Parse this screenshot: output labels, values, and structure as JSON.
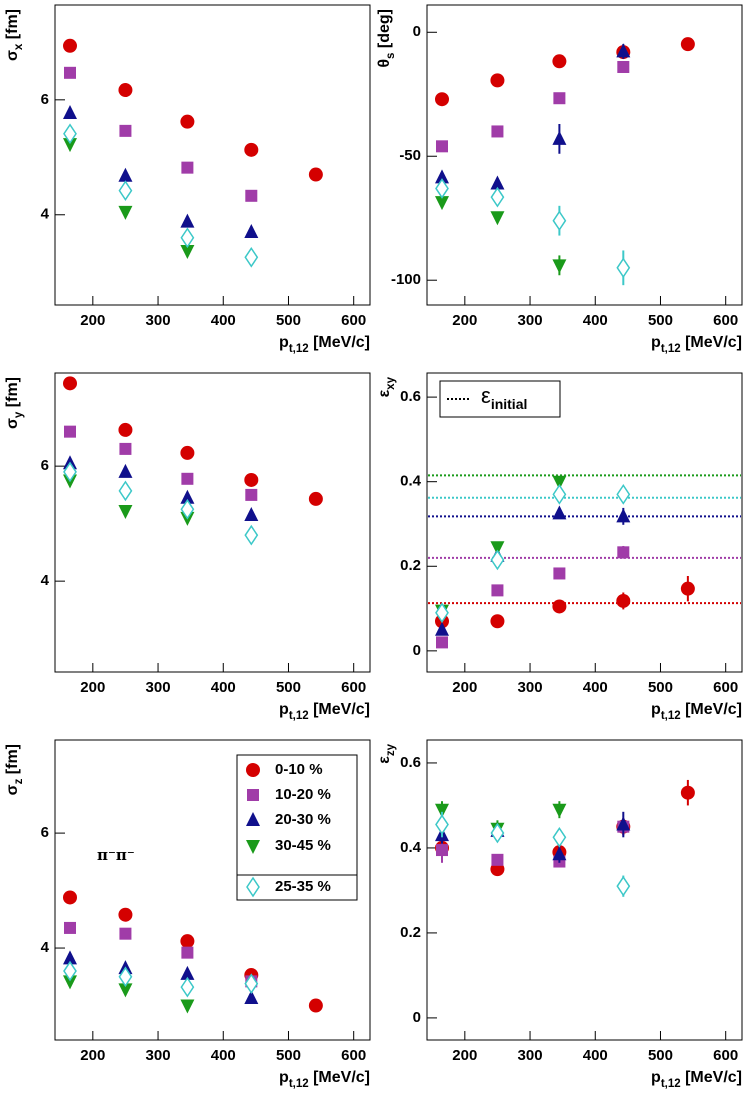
{
  "chart_data": [
    {
      "type": "scatter",
      "xlabel": {
        "main": "p",
        "sub": "t,12",
        "rest": " [MeV/c]"
      },
      "ylabel": {
        "main": "σ",
        "sub": "x",
        "rest": " [fm]"
      },
      "xlim": [
        142,
        625
      ],
      "xticks": [
        200,
        300,
        400,
        500,
        600
      ],
      "ylim": [
        2.43,
        7.65
      ],
      "yticks": [
        4,
        6
      ],
      "series": [
        {
          "marker": "circle",
          "color": "#d40000",
          "x": [
            165,
            250,
            345,
            443,
            542
          ],
          "values": [
            6.94,
            6.17,
            5.62,
            5.13,
            4.7
          ]
        },
        {
          "marker": "square",
          "color": "#a03ca8",
          "x": [
            165,
            250,
            345,
            443
          ],
          "values": [
            6.47,
            5.46,
            4.82,
            4.33
          ]
        },
        {
          "marker": "triangle-up",
          "color": "#10108c",
          "x": [
            165,
            250,
            345,
            443
          ],
          "values": [
            5.77,
            4.68,
            3.88,
            3.7
          ]
        },
        {
          "marker": "triangle-down",
          "color": "#1a9a1a",
          "x": [
            165,
            250,
            345
          ],
          "values": [
            5.23,
            4.05,
            3.37
          ]
        },
        {
          "marker": "diamond-open",
          "color": "#3cc8c8",
          "x": [
            165,
            250,
            345,
            443
          ],
          "values": [
            5.41,
            4.42,
            3.6,
            3.26
          ]
        }
      ]
    },
    {
      "type": "scatter",
      "xlabel": {
        "main": "p",
        "sub": "t,12",
        "rest": " [MeV/c]"
      },
      "ylabel": {
        "main": "θ",
        "sub": "s",
        "rest": " [deg]"
      },
      "xlim": [
        142,
        625
      ],
      "xticks": [
        200,
        300,
        400,
        500,
        600
      ],
      "ylim": [
        -110,
        11
      ],
      "yticks": [
        -100,
        -50,
        0
      ],
      "series": [
        {
          "marker": "circle",
          "color": "#d40000",
          "x": [
            165,
            250,
            345,
            443,
            542
          ],
          "values": [
            -27,
            -19.4,
            -11.7,
            -8,
            -4.8
          ],
          "errors": [
            1,
            1,
            1,
            1,
            1
          ]
        },
        {
          "marker": "square",
          "color": "#a03ca8",
          "x": [
            165,
            250,
            345,
            443
          ],
          "values": [
            -46,
            -40,
            -26.6,
            -14
          ],
          "errors": [
            1,
            1,
            1,
            1
          ]
        },
        {
          "marker": "triangle-up",
          "color": "#10108c",
          "x": [
            165,
            250,
            345,
            443
          ],
          "values": [
            -58.5,
            -61,
            -43,
            -7.7
          ],
          "errors": [
            2,
            2,
            6,
            3
          ]
        },
        {
          "marker": "triangle-down",
          "color": "#1a9a1a",
          "x": [
            165,
            250,
            345
          ],
          "values": [
            -68.5,
            -74.6,
            -94
          ],
          "errors": [
            2,
            2,
            4
          ]
        },
        {
          "marker": "diamond-open",
          "color": "#3cc8c8",
          "x": [
            165,
            250,
            345,
            443
          ],
          "values": [
            -63,
            -66.5,
            -76,
            -95
          ],
          "errors": [
            3,
            3,
            6,
            7
          ]
        }
      ]
    },
    {
      "type": "scatter",
      "xlabel": {
        "main": "p",
        "sub": "t,12",
        "rest": " [MeV/c]"
      },
      "ylabel": {
        "main": "σ",
        "sub": "y",
        "rest": " [fm]"
      },
      "xlim": [
        142,
        625
      ],
      "xticks": [
        200,
        300,
        400,
        500,
        600
      ],
      "ylim": [
        2.42,
        7.62
      ],
      "yticks": [
        4,
        6
      ],
      "series": [
        {
          "marker": "circle",
          "color": "#d40000",
          "x": [
            165,
            250,
            345,
            443,
            542
          ],
          "values": [
            7.44,
            6.63,
            6.23,
            5.76,
            5.43
          ]
        },
        {
          "marker": "square",
          "color": "#a03ca8",
          "x": [
            165,
            250,
            345,
            443
          ],
          "values": [
            6.6,
            6.3,
            5.78,
            5.5
          ]
        },
        {
          "marker": "triangle-up",
          "color": "#10108c",
          "x": [
            165,
            250,
            345,
            443
          ],
          "values": [
            6.05,
            5.9,
            5.45,
            5.15
          ]
        },
        {
          "marker": "triangle-down",
          "color": "#1a9a1a",
          "x": [
            165,
            250,
            345
          ],
          "values": [
            5.75,
            5.22,
            5.1
          ]
        },
        {
          "marker": "diamond-open",
          "color": "#3cc8c8",
          "x": [
            165,
            250,
            345,
            443
          ],
          "values": [
            5.9,
            5.57,
            5.25,
            4.8
          ]
        }
      ]
    },
    {
      "type": "scatter",
      "xlabel": {
        "main": "p",
        "sub": "t,12",
        "rest": " [MeV/c]"
      },
      "ylabel": {
        "main": "ε",
        "sub": "xy",
        "rest": ""
      },
      "xlim": [
        142,
        625
      ],
      "xticks": [
        200,
        300,
        400,
        500,
        600
      ],
      "ylim": [
        -0.05,
        0.657
      ],
      "yticks": [
        0,
        0.2,
        0.4,
        0.6
      ],
      "reference_label": {
        "main": "ε",
        "sub": "initial"
      },
      "reference_lines": [
        {
          "color": "#d40000",
          "value": 0.113
        },
        {
          "color": "#a03ca8",
          "value": 0.22
        },
        {
          "color": "#10108c",
          "value": 0.318
        },
        {
          "color": "#1a9a1a",
          "value": 0.415
        },
        {
          "color": "#3cc8c8",
          "value": 0.362
        }
      ],
      "series": [
        {
          "marker": "circle",
          "color": "#d40000",
          "x": [
            165,
            250,
            345,
            443,
            542
          ],
          "values": [
            0.07,
            0.07,
            0.105,
            0.118,
            0.147
          ],
          "errors": [
            0.01,
            0.01,
            0.01,
            0.02,
            0.03
          ]
        },
        {
          "marker": "square",
          "color": "#a03ca8",
          "x": [
            165,
            250,
            345,
            443
          ],
          "values": [
            0.02,
            0.143,
            0.183,
            0.233
          ],
          "errors": [
            0.01,
            0.01,
            0.01,
            0.015
          ]
        },
        {
          "marker": "triangle-up",
          "color": "#10108c",
          "x": [
            165,
            250,
            345,
            443
          ],
          "values": [
            0.05,
            0.225,
            0.325,
            0.318
          ],
          "errors": [
            0.01,
            0.01,
            0.01,
            0.02
          ]
        },
        {
          "marker": "triangle-down",
          "color": "#1a9a1a",
          "x": [
            165,
            250,
            345
          ],
          "values": [
            0.095,
            0.245,
            0.4
          ],
          "errors": [
            0.01,
            0.01,
            0.01
          ]
        },
        {
          "marker": "diamond-open",
          "color": "#3cc8c8",
          "x": [
            165,
            250,
            345,
            443
          ],
          "values": [
            0.09,
            0.215,
            0.37,
            0.37
          ],
          "errors": [
            0.01,
            0.01,
            0.02,
            0.02
          ]
        }
      ]
    },
    {
      "type": "scatter",
      "xlabel": {
        "main": "p",
        "sub": "t,12",
        "rest": " [MeV/c]"
      },
      "ylabel": {
        "main": "σ",
        "sub": "z",
        "rest": " [fm]"
      },
      "xlim": [
        142,
        625
      ],
      "xticks": [
        200,
        300,
        400,
        500,
        600
      ],
      "ylim": [
        2.4,
        7.62
      ],
      "yticks": [
        4,
        6
      ],
      "annotation": "π⁻π⁻",
      "legend": "top-right",
      "series": [
        {
          "name": "0-10 %",
          "marker": "circle",
          "color": "#d40000",
          "x": [
            165,
            250,
            345,
            443,
            542
          ],
          "values": [
            4.88,
            4.58,
            4.12,
            3.53,
            3.0
          ]
        },
        {
          "name": "10-20 %",
          "marker": "square",
          "color": "#a03ca8",
          "x": [
            165,
            250,
            345,
            443
          ],
          "values": [
            4.35,
            4.25,
            3.92,
            3.42
          ]
        },
        {
          "name": "20-30 %",
          "marker": "triangle-up",
          "color": "#10108c",
          "x": [
            165,
            250,
            345,
            443
          ],
          "values": [
            3.82,
            3.65,
            3.55,
            3.13
          ]
        },
        {
          "name": "30-45 %",
          "marker": "triangle-down",
          "color": "#1a9a1a",
          "x": [
            165,
            250,
            345
          ],
          "values": [
            3.42,
            3.28,
            3.0
          ]
        },
        {
          "name": "25-35 %",
          "marker": "diamond-open",
          "color": "#3cc8c8",
          "x": [
            165,
            250,
            345,
            443
          ],
          "values": [
            3.6,
            3.5,
            3.32,
            3.38
          ]
        }
      ]
    },
    {
      "type": "scatter",
      "xlabel": {
        "main": "p",
        "sub": "t,12",
        "rest": " [MeV/c]"
      },
      "ylabel": {
        "main": "ε",
        "sub": "zy",
        "rest": ""
      },
      "xlim": [
        142,
        625
      ],
      "xticks": [
        200,
        300,
        400,
        500,
        600
      ],
      "ylim": [
        -0.052,
        0.654
      ],
      "yticks": [
        0,
        0.2,
        0.4,
        0.6
      ],
      "series": [
        {
          "marker": "circle",
          "color": "#d40000",
          "x": [
            165,
            250,
            345,
            443,
            542
          ],
          "values": [
            0.4,
            0.35,
            0.39,
            0.45,
            0.53
          ],
          "errors": [
            0.02,
            0.01,
            0.02,
            0.02,
            0.03
          ]
        },
        {
          "marker": "square",
          "color": "#a03ca8",
          "x": [
            165,
            250,
            345,
            443
          ],
          "values": [
            0.395,
            0.372,
            0.368,
            0.45
          ],
          "errors": [
            0.03,
            0.01,
            0.01,
            0.02
          ]
        },
        {
          "marker": "triangle-up",
          "color": "#10108c",
          "x": [
            165,
            250,
            345,
            443
          ],
          "values": [
            0.43,
            0.44,
            0.385,
            0.455
          ],
          "errors": [
            0.02,
            0.02,
            0.02,
            0.03
          ]
        },
        {
          "marker": "triangle-down",
          "color": "#1a9a1a",
          "x": [
            165,
            250,
            345
          ],
          "values": [
            0.49,
            0.445,
            0.49
          ],
          "errors": [
            0.02,
            0.02,
            0.02
          ]
        },
        {
          "marker": "diamond-open",
          "color": "#3cc8c8",
          "x": [
            165,
            250,
            345,
            443
          ],
          "values": [
            0.455,
            0.435,
            0.425,
            0.31
          ],
          "errors": [
            0.03,
            0.02,
            0.02,
            0.025
          ]
        }
      ]
    }
  ]
}
